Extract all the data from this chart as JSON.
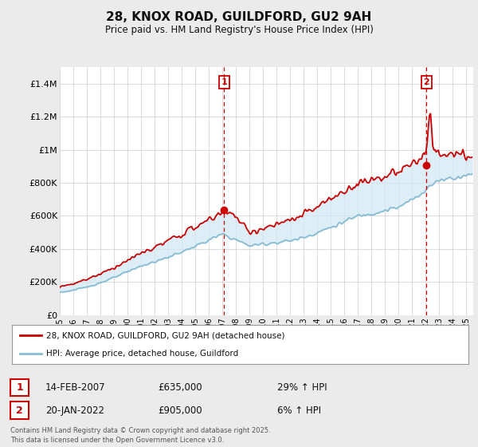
{
  "title": "28, KNOX ROAD, GUILDFORD, GU2 9AH",
  "subtitle": "Price paid vs. HM Land Registry's House Price Index (HPI)",
  "ylabel_ticks": [
    "£0",
    "£200K",
    "£400K",
    "£600K",
    "£800K",
    "£1M",
    "£1.2M",
    "£1.4M"
  ],
  "ytick_values": [
    0,
    200000,
    400000,
    600000,
    800000,
    1000000,
    1200000,
    1400000
  ],
  "ylim": [
    0,
    1500000
  ],
  "xlim_start": 1995.0,
  "xlim_end": 2025.5,
  "sale1_x": 2007.12,
  "sale1_y": 635000,
  "sale2_x": 2022.06,
  "sale2_y": 905000,
  "legend_label_red": "28, KNOX ROAD, GUILDFORD, GU2 9AH (detached house)",
  "legend_label_blue": "HPI: Average price, detached house, Guildford",
  "sale1_date": "14-FEB-2007",
  "sale1_price": "£635,000",
  "sale1_hpi": "29% ↑ HPI",
  "sale2_date": "20-JAN-2022",
  "sale2_price": "£905,000",
  "sale2_hpi": "6% ↑ HPI",
  "footer": "Contains HM Land Registry data © Crown copyright and database right 2025.\nThis data is licensed under the Open Government Licence v3.0.",
  "red_color": "#cc0000",
  "blue_color": "#87bcd4",
  "fill_color": "#d0e8f5",
  "bg_color": "#ebebeb",
  "plot_bg": "#ffffff",
  "grid_color": "#cccccc",
  "title_fontsize": 11,
  "subtitle_fontsize": 8.5
}
